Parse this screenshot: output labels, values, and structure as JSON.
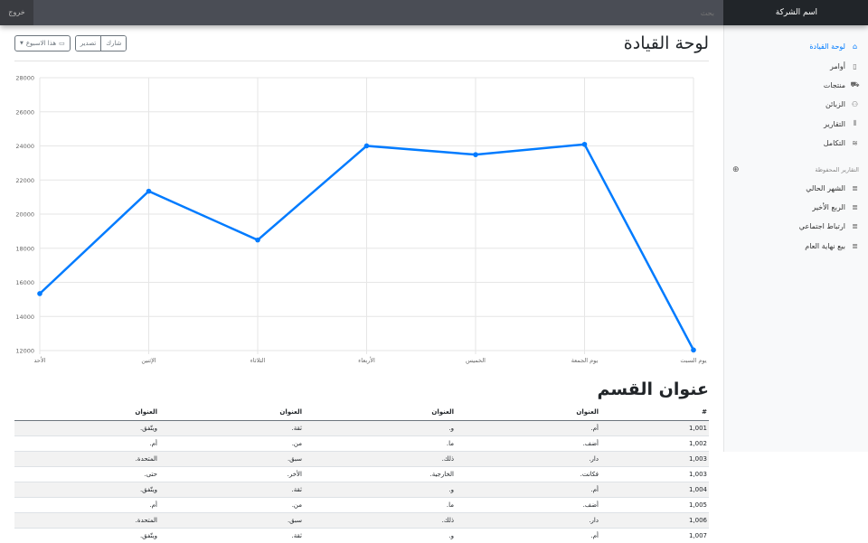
{
  "header": {
    "brand": "اسم الشركة",
    "search_placeholder": "بحث",
    "signout": "خروج"
  },
  "sidebar": {
    "items": [
      {
        "label": "لوحة القيادة",
        "icon": "home-icon",
        "active": true
      },
      {
        "label": "أوامر",
        "icon": "file-icon"
      },
      {
        "label": "منتجات",
        "icon": "shopping-cart-icon"
      },
      {
        "label": "الزبائن",
        "icon": "users-icon"
      },
      {
        "label": "التقارير",
        "icon": "bar-chart-icon"
      },
      {
        "label": "التكامل",
        "icon": "layers-icon"
      }
    ],
    "saved_heading": "التقارير المحفوظة",
    "saved": [
      {
        "label": "الشهر الحالي"
      },
      {
        "label": "الربع الأخير"
      },
      {
        "label": "ارتباط اجتماعي"
      },
      {
        "label": "بيع نهاية العام"
      }
    ]
  },
  "main": {
    "title": "لوحة القيادة",
    "share": "شارك",
    "export": "تصدير",
    "period": "هذا الاسبوع",
    "section_title": "عنوان القسم"
  },
  "chart_data": {
    "type": "line",
    "categories": [
      "الأحد",
      "الإثنين",
      "الثلاثاء",
      "الأربعاء",
      "الخميس",
      "يوم الجمعة",
      "يوم السبت"
    ],
    "values": [
      15339,
      21345,
      18483,
      24003,
      23489,
      24092,
      12034
    ],
    "ylim": [
      12000,
      28000
    ],
    "yticks": [
      12000,
      14000,
      16000,
      18000,
      20000,
      22000,
      24000,
      26000,
      28000
    ],
    "grid": true,
    "color": "#007bff"
  },
  "table": {
    "headers": [
      "#",
      "العنوان",
      "العنوان",
      "العنوان",
      "العنوان"
    ],
    "rows": [
      [
        "1,001",
        "أم.",
        "و.",
        "ثقة.",
        "ويتّفق."
      ],
      [
        "1,002",
        "أضف.",
        "ما.",
        "من.",
        "أم."
      ],
      [
        "1,003",
        "دار.",
        "ذلك.",
        "سبق.",
        "المتحدة."
      ],
      [
        "1,003",
        "فكانت.",
        "الخارجية.",
        "الأخر.",
        "حتى."
      ],
      [
        "1,004",
        "أم.",
        "و.",
        "ثقة.",
        "ويتّفق."
      ],
      [
        "1,005",
        "أضف.",
        "ما.",
        "من.",
        "أم."
      ],
      [
        "1,006",
        "دار.",
        "ذلك.",
        "سبق.",
        "المتحدة."
      ],
      [
        "1,007",
        "أم.",
        "و.",
        "ثقة.",
        "ويتّفق."
      ]
    ]
  }
}
